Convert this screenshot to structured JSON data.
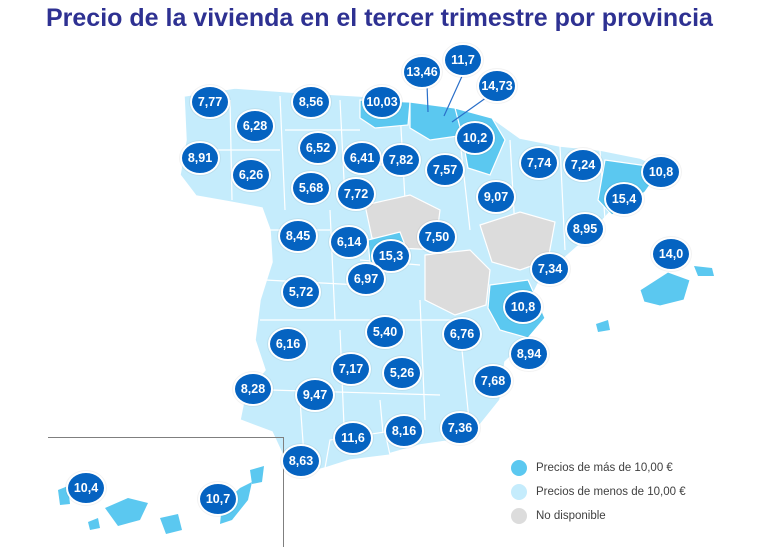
{
  "title": "Precio de la vivienda en el tercer trimestre por provincia",
  "colors": {
    "above_10": "#5bc8f0",
    "below_10": "#c5ecfc",
    "not_available": "#dcdcdc",
    "badge": "#0563c1",
    "title": "#2e3192"
  },
  "legend": {
    "above": "Precios de más de 10,00 €",
    "below": "Precios de menos de 10,00 €",
    "na": "No disponible"
  },
  "provinces": [
    {
      "id": "a-coruna",
      "value": "7,77"
    },
    {
      "id": "lugo",
      "value": "6,28"
    },
    {
      "id": "asturias",
      "value": "8,56"
    },
    {
      "id": "cantabria",
      "value": "10,03"
    },
    {
      "id": "bizkaia",
      "value": "13,46"
    },
    {
      "id": "gipuzkoa",
      "value": "11,7"
    },
    {
      "id": "alava",
      "value": "14,73"
    },
    {
      "id": "navarra",
      "value": "10,2"
    },
    {
      "id": "pontevedra",
      "value": "8,91"
    },
    {
      "id": "ourense",
      "value": "6,26"
    },
    {
      "id": "leon",
      "value": "6,52"
    },
    {
      "id": "palencia",
      "value": "6,41"
    },
    {
      "id": "burgos",
      "value": "7,82"
    },
    {
      "id": "la-rioja",
      "value": "7,57"
    },
    {
      "id": "huesca",
      "value": "7,74"
    },
    {
      "id": "lleida",
      "value": "7,24"
    },
    {
      "id": "girona",
      "value": "10,8"
    },
    {
      "id": "barcelona",
      "value": "15,4"
    },
    {
      "id": "zamora",
      "value": "5,68"
    },
    {
      "id": "valladolid",
      "value": "7,72"
    },
    {
      "id": "zaragoza",
      "value": "9,07"
    },
    {
      "id": "tarragona",
      "value": "8,95"
    },
    {
      "id": "salamanca",
      "value": "8,45"
    },
    {
      "id": "avila",
      "value": "6,14"
    },
    {
      "id": "madrid",
      "value": "15,3"
    },
    {
      "id": "guadalajara",
      "value": "7,50"
    },
    {
      "id": "baleares",
      "value": "14,0"
    },
    {
      "id": "castellon",
      "value": "7,34"
    },
    {
      "id": "toledo",
      "value": "6,97"
    },
    {
      "id": "caceres",
      "value": "5,72"
    },
    {
      "id": "valencia",
      "value": "10,8"
    },
    {
      "id": "ciudad-real",
      "value": "5,40"
    },
    {
      "id": "albacete",
      "value": "6,76"
    },
    {
      "id": "badajoz",
      "value": "6,16"
    },
    {
      "id": "alicante",
      "value": "8,94"
    },
    {
      "id": "cordoba",
      "value": "7,17"
    },
    {
      "id": "jaen",
      "value": "5,26"
    },
    {
      "id": "huelva",
      "value": "8,28"
    },
    {
      "id": "sevilla",
      "value": "9,47"
    },
    {
      "id": "murcia",
      "value": "7,68"
    },
    {
      "id": "malaga",
      "value": "11,6"
    },
    {
      "id": "granada",
      "value": "8,16"
    },
    {
      "id": "almeria",
      "value": "7,36"
    },
    {
      "id": "cadiz",
      "value": "8,63"
    },
    {
      "id": "santa-cruz-tenerife",
      "value": "10,4"
    },
    {
      "id": "las-palmas",
      "value": "10,7"
    }
  ]
}
